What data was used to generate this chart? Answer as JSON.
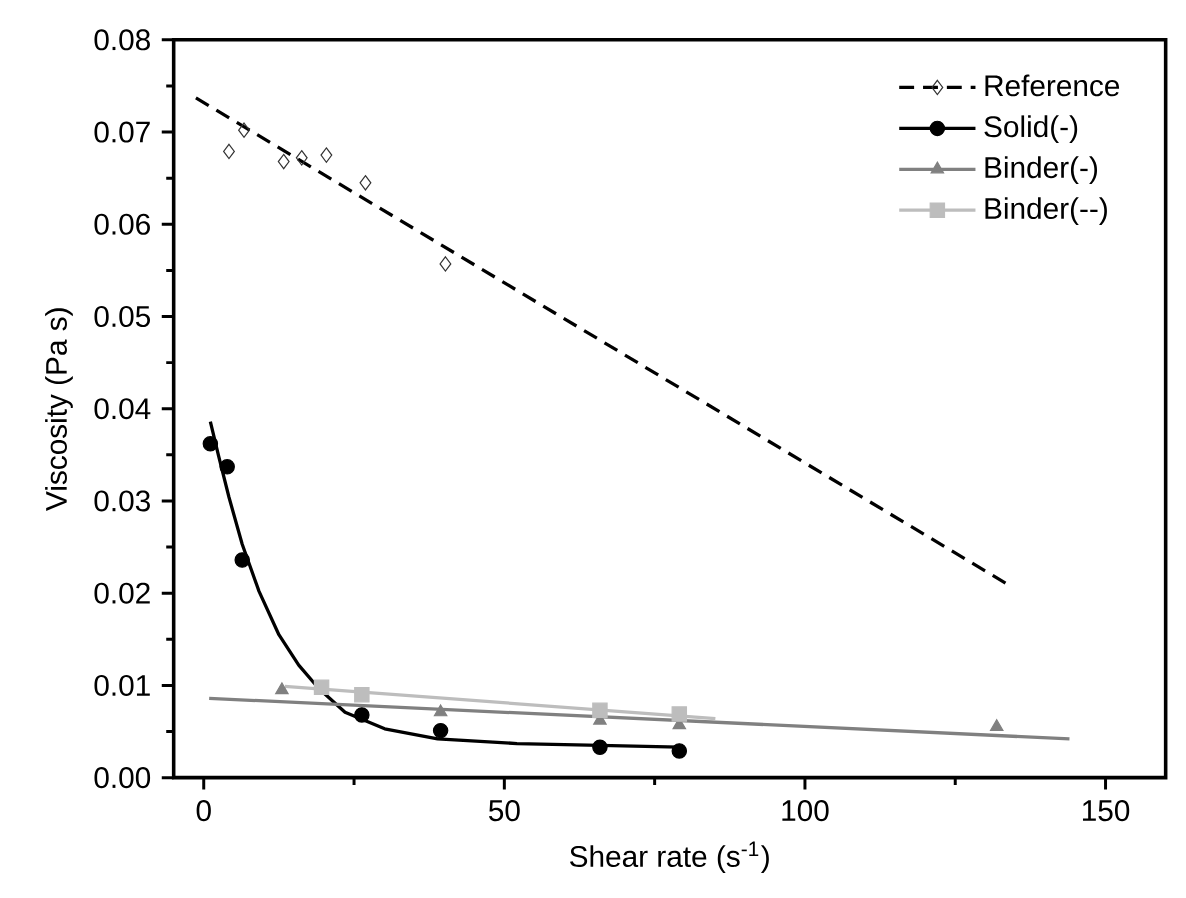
{
  "chart_data": {
    "type": "scatter",
    "xlabel": "Shear rate (s$^{-1}$)",
    "ylabel": "Viscosity (Pa s)",
    "xlim": [
      -5,
      160
    ],
    "ylim": [
      0,
      0.08
    ],
    "xticks": [
      0,
      50,
      100,
      150
    ],
    "yticks": [
      {
        "value": 0,
        "label": "0.00"
      },
      {
        "value": 0.01,
        "label": "0.01"
      },
      {
        "value": 0.02,
        "label": "0.02"
      },
      {
        "value": 0.03,
        "label": "0.03"
      },
      {
        "value": 0.04,
        "label": "0.04"
      },
      {
        "value": 0.05,
        "label": "0.05"
      },
      {
        "value": 0.06,
        "label": "0.06"
      },
      {
        "value": 0.07,
        "label": "0.07"
      },
      {
        "value": 0.08,
        "label": "0.08"
      }
    ],
    "grid": false,
    "legend": "top right",
    "series": [
      {
        "name": "Reference",
        "marker": "diamond",
        "color": "#333333",
        "x": [
          4.2,
          6.7,
          13.3,
          16.3,
          20.4,
          26.9,
          40.2
        ],
        "values": [
          0.0679,
          0.0702,
          0.0668,
          0.0672,
          0.0675,
          0.0645,
          0.0557
        ]
      },
      {
        "type": "line",
        "line_style": "dashed",
        "color": "#000000",
        "x": [
          -1.3,
          133.6
        ],
        "values": [
          0.0737,
          0.021
        ]
      },
      {
        "name": "Solid(-)",
        "marker": "circle",
        "color": "#000000",
        "x": [
          1.1,
          3.9,
          6.4,
          26.3,
          39.4,
          65.9,
          79.1
        ],
        "values": [
          0.0362,
          0.0337,
          0.0236,
          0.0068,
          0.0051,
          0.0033,
          0.0029
        ]
      },
      {
        "type": "line",
        "line_style": "solid",
        "color": "#000000",
        "x": [
          1.1,
          2.5,
          4.2,
          6.4,
          9.2,
          12.5,
          15.8,
          19.1,
          23.5,
          30.1,
          38.9,
          52.1,
          65.9,
          79.1
        ],
        "values": [
          0.0386,
          0.0348,
          0.0304,
          0.0253,
          0.0202,
          0.0155,
          0.0122,
          0.0097,
          0.0071,
          0.0053,
          0.0042,
          0.0037,
          0.0035,
          0.0033
        ]
      },
      {
        "name": "Binder(-)",
        "marker": "triangle",
        "color": "#808080",
        "x": [
          13.0,
          39.4,
          65.9,
          79.1,
          131.9
        ],
        "values": [
          0.0095,
          0.0071,
          0.0062,
          0.0057,
          0.0055
        ]
      },
      {
        "type": "line",
        "line_style": "solid",
        "color": "#808080",
        "x": [
          0.9,
          144.0
        ],
        "values": [
          0.0086,
          0.0042
        ]
      },
      {
        "name": "Binder(--)",
        "marker": "square",
        "color": "#bdbdbd",
        "x": [
          19.6,
          26.3,
          65.9,
          79.1
        ],
        "values": [
          0.0098,
          0.009,
          0.0073,
          0.0069
        ]
      },
      {
        "type": "line",
        "line_style": "solid",
        "color": "#bdbdbd",
        "x": [
          13.5,
          85.1
        ],
        "values": [
          0.0099,
          0.0064
        ]
      }
    ]
  }
}
